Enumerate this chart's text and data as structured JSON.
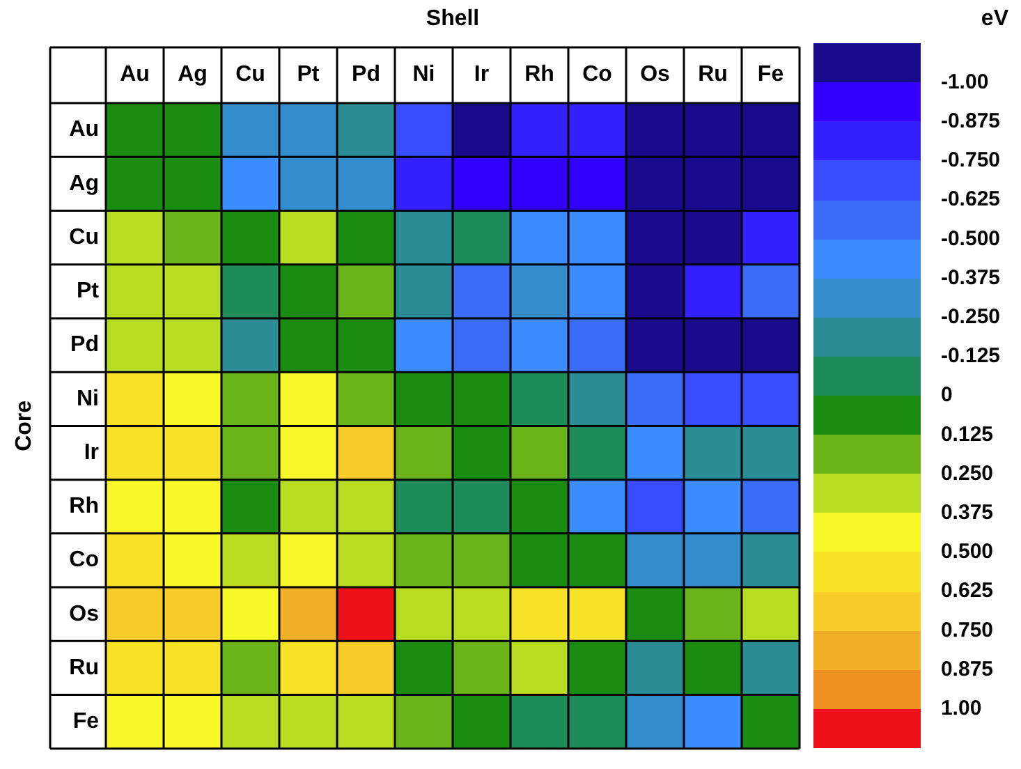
{
  "chart_data": {
    "type": "heatmap",
    "xlabel": "Shell",
    "ylabel": "Core",
    "clabel": "eV",
    "categories": [
      "Au",
      "Ag",
      "Cu",
      "Pt",
      "Pd",
      "Ni",
      "Ir",
      "Rh",
      "Co",
      "Os",
      "Ru",
      "Fe"
    ],
    "y_categories": [
      "Au",
      "Ag",
      "Cu",
      "Pt",
      "Pd",
      "Ni",
      "Ir",
      "Rh",
      "Co",
      "Os",
      "Ru",
      "Fe"
    ],
    "cells": [
      [
        0.0625,
        0.0625,
        -0.3125,
        -0.3125,
        -0.1875,
        -0.6875,
        -1.0625,
        -0.8125,
        -0.8125,
        -1.0625,
        -1.0625,
        -1.0625
      ],
      [
        0.0625,
        0.0625,
        -0.4375,
        -0.3125,
        -0.3125,
        -0.8125,
        -0.9375,
        -0.9375,
        -0.9375,
        -1.0625,
        -1.0625,
        -1.0625
      ],
      [
        0.3125,
        0.1875,
        0.0625,
        0.3125,
        0.0625,
        -0.1875,
        -0.0625,
        -0.4375,
        -0.4375,
        -1.0625,
        -1.0625,
        -0.8125
      ],
      [
        0.3125,
        0.3125,
        -0.0625,
        0.0625,
        0.1875,
        -0.1875,
        -0.5625,
        -0.3125,
        -0.4375,
        -1.0625,
        -0.8125,
        -0.5625
      ],
      [
        0.3125,
        0.3125,
        -0.1875,
        0.0625,
        0.0625,
        -0.4375,
        -0.5625,
        -0.4375,
        -0.5625,
        -1.0625,
        -1.0625,
        -1.0625
      ],
      [
        0.5625,
        0.4375,
        0.1875,
        0.4375,
        0.1875,
        0.0625,
        0.0625,
        -0.0625,
        -0.1875,
        -0.5625,
        -0.6875,
        -0.6875
      ],
      [
        0.5625,
        0.5625,
        0.1875,
        0.4375,
        0.6875,
        0.1875,
        0.0625,
        0.1875,
        -0.0625,
        -0.4375,
        -0.1875,
        -0.1875
      ],
      [
        0.4375,
        0.4375,
        0.0625,
        0.3125,
        0.3125,
        -0.0625,
        -0.0625,
        0.0625,
        -0.4375,
        -0.6875,
        -0.4375,
        -0.5625
      ],
      [
        0.5625,
        0.4375,
        0.3125,
        0.4375,
        0.3125,
        0.1875,
        0.1875,
        0.0625,
        0.0625,
        -0.3125,
        -0.3125,
        -0.1875
      ],
      [
        0.6875,
        0.6875,
        0.4375,
        0.8125,
        1.0625,
        0.3125,
        0.3125,
        0.5625,
        0.5625,
        0.0625,
        0.1875,
        0.3125
      ],
      [
        0.5625,
        0.5625,
        0.1875,
        0.5625,
        0.6875,
        0.0625,
        0.1875,
        0.3125,
        0.0625,
        -0.1875,
        0.0625,
        -0.1875
      ],
      [
        0.4375,
        0.4375,
        0.3125,
        0.3125,
        0.3125,
        0.1875,
        0.0625,
        -0.0625,
        -0.0625,
        -0.3125,
        -0.4375,
        0.0625
      ]
    ],
    "clim": [
      -1.125,
      1.125
    ],
    "cticks": [
      {
        "value": -1,
        "label": "-1.00"
      },
      -0.875,
      {
        "value": -0.75,
        "label": "-0.750"
      },
      -0.625,
      {
        "value": -0.5,
        "label": "-0.500"
      },
      -0.375,
      {
        "value": -0.25,
        "label": "-0.250"
      },
      -0.125,
      0,
      0.125,
      {
        "value": 0.25,
        "label": "0.250"
      },
      0.375,
      {
        "value": 0.5,
        "label": "0.500"
      },
      0.625,
      {
        "value": 0.75,
        "label": "0.750"
      },
      0.875,
      {
        "value": 1,
        "label": "1.00"
      }
    ]
  }
}
